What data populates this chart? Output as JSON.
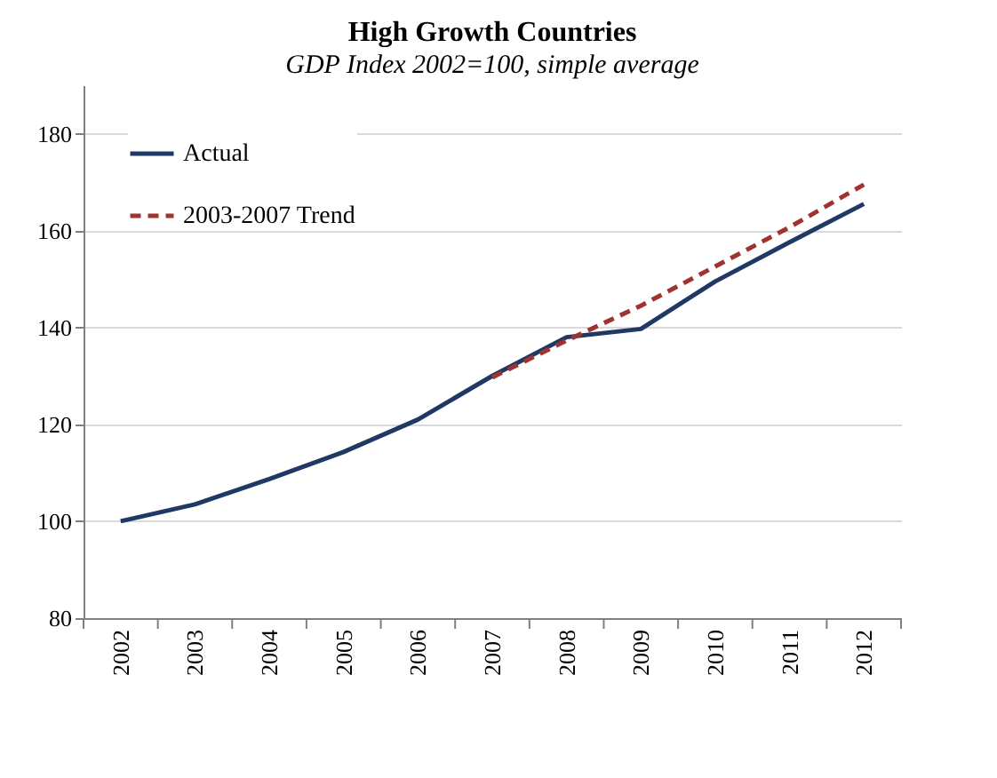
{
  "chart_data": {
    "type": "line",
    "title": "High Growth Countries",
    "subtitle": "GDP Index 2002=100, simple average",
    "categories": [
      "2002",
      "2003",
      "2004",
      "2005",
      "2006",
      "2007",
      "2008",
      "2009",
      "2010",
      "2011",
      "2012"
    ],
    "series": [
      {
        "name": "Actual",
        "color": "#1f3864",
        "line_style": "solid",
        "values": [
          100,
          103.5,
          108.7,
          114.3,
          121,
          130,
          138,
          139.7,
          149.5,
          157.6,
          165.5
        ]
      },
      {
        "name": "2003-2007 Trend",
        "color": "#a0322f",
        "line_style": "dashed",
        "values": [
          null,
          null,
          null,
          null,
          null,
          129.7,
          137.3,
          144.5,
          152.6,
          160.7,
          169.5
        ]
      }
    ],
    "ylim": [
      80,
      190
    ],
    "yticks": [
      80,
      100,
      120,
      140,
      160,
      180
    ],
    "grid": "y",
    "legend": "top left",
    "marker": "none"
  }
}
